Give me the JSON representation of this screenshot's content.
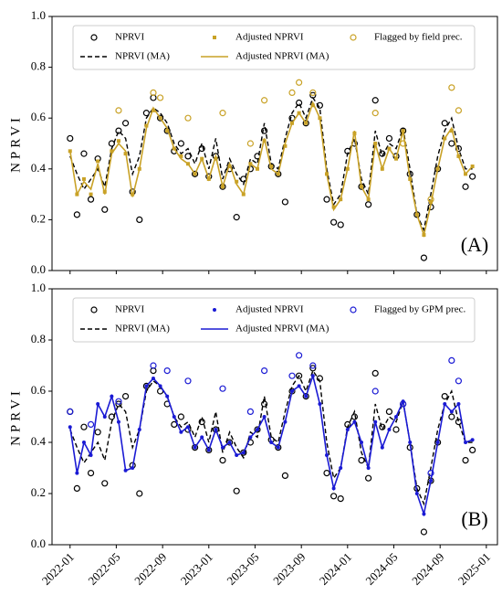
{
  "chart_data": [
    {
      "type": "line",
      "ylabel": "NPRVI",
      "annotation": "(A)",
      "xlim": [
        2021.87,
        2025.08
      ],
      "xticks": [
        2022,
        2022.333,
        2022.667,
        2023,
        2023.333,
        2023.667,
        2024,
        2024.333,
        2024.667,
        2025
      ],
      "ylim": [
        0,
        1
      ],
      "yticks": [
        {
          "value": 0,
          "label": "0.0"
        },
        {
          "value": 0.2,
          "label": "0.2"
        },
        {
          "value": 0.4,
          "label": "0.4"
        },
        {
          "value": 0.6,
          "label": "0.6"
        },
        {
          "value": 0.8,
          "label": "0.8"
        },
        {
          "value": 1,
          "label": "1.0"
        }
      ],
      "x": [
        2022.0,
        2022.05,
        2022.1,
        2022.15,
        2022.2,
        2022.25,
        2022.3,
        2022.35,
        2022.4,
        2022.45,
        2022.5,
        2022.55,
        2022.6,
        2022.65,
        2022.7,
        2022.75,
        2022.8,
        2022.85,
        2022.9,
        2022.95,
        2023.0,
        2023.05,
        2023.1,
        2023.15,
        2023.2,
        2023.25,
        2023.3,
        2023.35,
        2023.4,
        2023.45,
        2023.5,
        2023.55,
        2023.6,
        2023.65,
        2023.7,
        2023.75,
        2023.8,
        2023.85,
        2023.9,
        2023.95,
        2024.0,
        2024.05,
        2024.1,
        2024.15,
        2024.2,
        2024.25,
        2024.3,
        2024.35,
        2024.4,
        2024.45,
        2024.5,
        2024.55,
        2024.6,
        2024.65,
        2024.7,
        2024.75,
        2024.8,
        2024.85,
        2024.9
      ],
      "series": [
        {
          "name": "NPRVI",
          "color": "#000000",
          "marker": "open-circle",
          "values": [
            0.52,
            0.22,
            0.46,
            0.28,
            0.44,
            0.24,
            0.5,
            0.55,
            0.58,
            0.31,
            0.2,
            0.62,
            0.68,
            0.6,
            0.55,
            0.47,
            0.5,
            0.45,
            0.38,
            0.48,
            0.37,
            0.45,
            0.33,
            0.4,
            0.21,
            0.36,
            0.4,
            0.45,
            0.55,
            0.41,
            0.38,
            0.27,
            0.6,
            0.66,
            0.58,
            0.69,
            0.65,
            0.28,
            0.19,
            0.18,
            0.47,
            0.5,
            0.33,
            0.26,
            0.67,
            0.46,
            0.52,
            0.45,
            0.55,
            0.38,
            0.22,
            0.05,
            0.25,
            0.4,
            0.58,
            0.5,
            0.48,
            0.33,
            0.37
          ]
        },
        {
          "name": "NPRVI (MA)",
          "color": "#000000",
          "linestyle": "dashed",
          "values": [
            0.45,
            0.38,
            0.32,
            0.36,
            0.4,
            0.33,
            0.48,
            0.55,
            0.52,
            0.38,
            0.45,
            0.6,
            0.64,
            0.62,
            0.58,
            0.5,
            0.46,
            0.48,
            0.42,
            0.5,
            0.4,
            0.52,
            0.36,
            0.44,
            0.38,
            0.34,
            0.44,
            0.42,
            0.58,
            0.42,
            0.4,
            0.52,
            0.62,
            0.66,
            0.6,
            0.68,
            0.64,
            0.4,
            0.26,
            0.3,
            0.46,
            0.52,
            0.36,
            0.3,
            0.55,
            0.45,
            0.5,
            0.48,
            0.56,
            0.4,
            0.22,
            0.16,
            0.3,
            0.45,
            0.55,
            0.6,
            0.48,
            0.4,
            0.4
          ]
        },
        {
          "name": "Adjusted NPRVI",
          "color": "#c9a227",
          "marker": "square",
          "values": [
            0.47,
            0.3,
            0.36,
            0.3,
            0.43,
            0.31,
            0.47,
            0.51,
            0.46,
            0.3,
            0.4,
            0.57,
            0.63,
            0.6,
            0.55,
            0.48,
            0.45,
            0.42,
            0.38,
            0.44,
            0.36,
            0.44,
            0.33,
            0.41,
            0.35,
            0.3,
            0.42,
            0.4,
            0.51,
            0.41,
            0.38,
            0.49,
            0.58,
            0.62,
            0.58,
            0.65,
            0.6,
            0.38,
            0.25,
            0.28,
            0.4,
            0.54,
            0.33,
            0.28,
            0.5,
            0.4,
            0.48,
            0.44,
            0.55,
            0.36,
            0.22,
            0.14,
            0.27,
            0.4,
            0.52,
            0.55,
            0.45,
            0.38,
            0.41
          ]
        },
        {
          "name": "Adjusted NPRVI (MA)",
          "color": "#c9a227",
          "linestyle": "solid",
          "values": [
            0.47,
            0.3,
            0.35,
            0.32,
            0.42,
            0.3,
            0.46,
            0.5,
            0.47,
            0.29,
            0.4,
            0.56,
            0.64,
            0.6,
            0.56,
            0.48,
            0.44,
            0.42,
            0.38,
            0.44,
            0.36,
            0.45,
            0.33,
            0.42,
            0.34,
            0.3,
            0.42,
            0.4,
            0.52,
            0.4,
            0.38,
            0.5,
            0.58,
            0.62,
            0.58,
            0.66,
            0.6,
            0.38,
            0.24,
            0.28,
            0.4,
            0.55,
            0.33,
            0.28,
            0.5,
            0.4,
            0.48,
            0.44,
            0.55,
            0.36,
            0.22,
            0.14,
            0.26,
            0.4,
            0.52,
            0.56,
            0.45,
            0.38,
            0.41
          ]
        },
        {
          "name": "Flagged by field prec.",
          "color": "#c9a227",
          "marker": "open-circle",
          "values": [
            null,
            null,
            null,
            null,
            null,
            null,
            null,
            0.63,
            null,
            null,
            null,
            null,
            0.7,
            0.68,
            null,
            null,
            null,
            0.6,
            null,
            null,
            null,
            null,
            0.62,
            null,
            null,
            null,
            0.5,
            null,
            0.67,
            null,
            null,
            null,
            0.7,
            0.74,
            null,
            0.7,
            null,
            null,
            null,
            null,
            null,
            null,
            null,
            null,
            0.62,
            null,
            null,
            null,
            0.5,
            null,
            null,
            null,
            0.28,
            null,
            null,
            0.72,
            0.63,
            null,
            null
          ]
        }
      ]
    },
    {
      "type": "line",
      "ylabel": "NPRVI",
      "annotation": "(B)",
      "xlim": [
        2021.87,
        2025.08
      ],
      "xticks": [
        {
          "value": 2022,
          "label": "2022-01"
        },
        {
          "value": 2022.333,
          "label": "2022-05"
        },
        {
          "value": 2022.667,
          "label": "2022-09"
        },
        {
          "value": 2023,
          "label": "2023-01"
        },
        {
          "value": 2023.333,
          "label": "2023-05"
        },
        {
          "value": 2023.667,
          "label": "2023-09"
        },
        {
          "value": 2024,
          "label": "2024-01"
        },
        {
          "value": 2024.333,
          "label": "2024-05"
        },
        {
          "value": 2024.667,
          "label": "2024-09"
        },
        {
          "value": 2025,
          "label": "2025-01"
        }
      ],
      "ylim": [
        0,
        1
      ],
      "yticks": [
        {
          "value": 0,
          "label": "0.0"
        },
        {
          "value": 0.2,
          "label": "0.2"
        },
        {
          "value": 0.4,
          "label": "0.4"
        },
        {
          "value": 0.6,
          "label": "0.6"
        },
        {
          "value": 0.8,
          "label": "0.8"
        },
        {
          "value": 1,
          "label": "1.0"
        }
      ],
      "x": [
        2022.0,
        2022.05,
        2022.1,
        2022.15,
        2022.2,
        2022.25,
        2022.3,
        2022.35,
        2022.4,
        2022.45,
        2022.5,
        2022.55,
        2022.6,
        2022.65,
        2022.7,
        2022.75,
        2022.8,
        2022.85,
        2022.9,
        2022.95,
        2023.0,
        2023.05,
        2023.1,
        2023.15,
        2023.2,
        2023.25,
        2023.3,
        2023.35,
        2023.4,
        2023.45,
        2023.5,
        2023.55,
        2023.6,
        2023.65,
        2023.7,
        2023.75,
        2023.8,
        2023.85,
        2023.9,
        2023.95,
        2024.0,
        2024.05,
        2024.1,
        2024.15,
        2024.2,
        2024.25,
        2024.3,
        2024.35,
        2024.4,
        2024.45,
        2024.5,
        2024.55,
        2024.6,
        2024.65,
        2024.7,
        2024.75,
        2024.8,
        2024.85,
        2024.9
      ],
      "series": [
        {
          "name": "NPRVI",
          "color": "#000000",
          "marker": "open-circle",
          "values": [
            0.52,
            0.22,
            0.46,
            0.28,
            0.44,
            0.24,
            0.5,
            0.55,
            0.58,
            0.31,
            0.2,
            0.62,
            0.68,
            0.6,
            0.55,
            0.47,
            0.5,
            0.45,
            0.38,
            0.48,
            0.37,
            0.45,
            0.33,
            0.4,
            0.21,
            0.36,
            0.4,
            0.45,
            0.55,
            0.41,
            0.38,
            0.27,
            0.6,
            0.66,
            0.58,
            0.69,
            0.65,
            0.28,
            0.19,
            0.18,
            0.47,
            0.5,
            0.33,
            0.26,
            0.67,
            0.46,
            0.52,
            0.45,
            0.55,
            0.38,
            0.22,
            0.05,
            0.25,
            0.4,
            0.58,
            0.5,
            0.48,
            0.33,
            0.37
          ]
        },
        {
          "name": "NPRVI (MA)",
          "color": "#000000",
          "linestyle": "dashed",
          "values": [
            0.45,
            0.38,
            0.32,
            0.36,
            0.4,
            0.33,
            0.48,
            0.55,
            0.52,
            0.38,
            0.45,
            0.6,
            0.64,
            0.62,
            0.58,
            0.5,
            0.46,
            0.48,
            0.42,
            0.5,
            0.4,
            0.52,
            0.36,
            0.44,
            0.38,
            0.34,
            0.44,
            0.42,
            0.58,
            0.42,
            0.4,
            0.52,
            0.62,
            0.66,
            0.6,
            0.68,
            0.64,
            0.4,
            0.26,
            0.3,
            0.46,
            0.52,
            0.36,
            0.3,
            0.55,
            0.45,
            0.5,
            0.48,
            0.56,
            0.4,
            0.22,
            0.16,
            0.3,
            0.45,
            0.55,
            0.6,
            0.48,
            0.4,
            0.4
          ]
        },
        {
          "name": "Adjusted NPRVI",
          "color": "#1a1ad4",
          "marker": "dot",
          "values": [
            0.46,
            0.28,
            0.4,
            0.35,
            0.55,
            0.5,
            0.58,
            0.48,
            0.29,
            0.3,
            0.45,
            0.62,
            0.65,
            0.62,
            0.58,
            0.5,
            0.44,
            0.46,
            0.38,
            0.42,
            0.37,
            0.45,
            0.38,
            0.4,
            0.35,
            0.36,
            0.42,
            0.45,
            0.5,
            0.4,
            0.38,
            0.48,
            0.6,
            0.62,
            0.58,
            0.66,
            0.55,
            0.35,
            0.22,
            0.3,
            0.45,
            0.48,
            0.4,
            0.3,
            0.48,
            0.38,
            0.45,
            0.5,
            0.56,
            0.4,
            0.2,
            0.12,
            0.25,
            0.4,
            0.55,
            0.52,
            0.55,
            0.4,
            0.41
          ]
        },
        {
          "name": "Adjusted NPRVI (MA)",
          "color": "#1a1ad4",
          "linestyle": "solid",
          "values": [
            0.46,
            0.28,
            0.4,
            0.35,
            0.55,
            0.5,
            0.58,
            0.48,
            0.29,
            0.3,
            0.45,
            0.62,
            0.65,
            0.62,
            0.58,
            0.5,
            0.44,
            0.46,
            0.38,
            0.42,
            0.37,
            0.45,
            0.38,
            0.4,
            0.35,
            0.36,
            0.42,
            0.45,
            0.5,
            0.4,
            0.38,
            0.48,
            0.6,
            0.62,
            0.58,
            0.66,
            0.55,
            0.35,
            0.22,
            0.3,
            0.45,
            0.48,
            0.4,
            0.3,
            0.48,
            0.38,
            0.45,
            0.5,
            0.56,
            0.4,
            0.2,
            0.12,
            0.25,
            0.4,
            0.55,
            0.52,
            0.55,
            0.4,
            0.41
          ]
        },
        {
          "name": "Flagged by GPM prec.",
          "color": "#1a1ad4",
          "marker": "open-circle",
          "values": [
            0.52,
            null,
            null,
            0.47,
            null,
            null,
            null,
            0.56,
            null,
            null,
            null,
            null,
            0.7,
            null,
            0.68,
            null,
            null,
            0.64,
            null,
            null,
            null,
            null,
            0.61,
            null,
            null,
            null,
            0.52,
            null,
            0.68,
            null,
            null,
            null,
            0.66,
            0.74,
            null,
            0.7,
            null,
            null,
            null,
            null,
            null,
            null,
            null,
            null,
            0.6,
            null,
            null,
            null,
            0.55,
            null,
            null,
            null,
            0.28,
            null,
            null,
            0.72,
            0.64,
            null,
            null
          ]
        }
      ]
    }
  ]
}
